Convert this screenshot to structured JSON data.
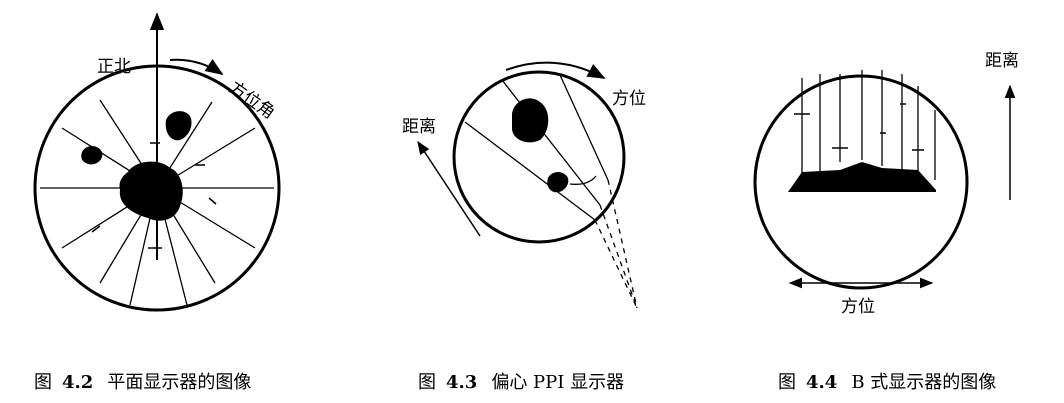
{
  "figures": [
    {
      "id": "fig-4-2",
      "labels": {
        "north": "正北",
        "azimuth_angle": "方位角"
      },
      "caption": {
        "prefix": "图",
        "number": "4.2",
        "text": "平面显示器的图像"
      }
    },
    {
      "id": "fig-4-3",
      "labels": {
        "range": "距离",
        "azimuth": "方位"
      },
      "caption": {
        "prefix": "图",
        "number": "4.3",
        "text": "偏心 PPI 显示器"
      }
    },
    {
      "id": "fig-4-4",
      "labels": {
        "range": "距离",
        "azimuth": "方位"
      },
      "caption": {
        "prefix": "图",
        "number": "4.4",
        "text": "B 式显示器的图像"
      }
    }
  ]
}
